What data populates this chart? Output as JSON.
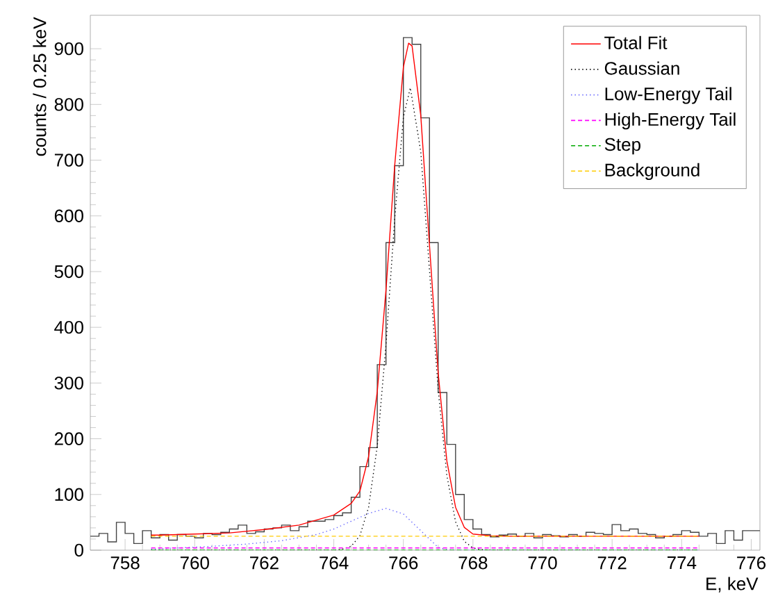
{
  "chart_data": {
    "type": "histogram",
    "xlabel": "E, keV",
    "ylabel": "counts / 0.25 keV",
    "color": "#444444",
    "bins": [
      757,
      757.25,
      757.5,
      757.75,
      758,
      758.25,
      758.5,
      758.75,
      759,
      759.25,
      759.5,
      759.75,
      760,
      760.25,
      760.5,
      760.75,
      761,
      761.25,
      761.5,
      761.75,
      762,
      762.25,
      762.5,
      762.75,
      763,
      763.25,
      763.5,
      763.75,
      764,
      764.25,
      764.5,
      764.75,
      765,
      765.25,
      765.5,
      765.75,
      766,
      766.25,
      766.5,
      766.75,
      767,
      767.25,
      767.5,
      767.75,
      768,
      768.25,
      768.5,
      768.75,
      769,
      769.25,
      769.5,
      769.75,
      770,
      770.25,
      770.5,
      770.75,
      771,
      771.25,
      771.5,
      771.75,
      772,
      772.25,
      772.5,
      772.75,
      773,
      773.25,
      773.5,
      773.75,
      774,
      774.25,
      774.5,
      774.75,
      775,
      775.25,
      775.5,
      775.75,
      776,
      776.25
    ],
    "values": [
      25,
      30,
      15,
      50,
      30,
      12,
      35,
      22,
      28,
      18,
      28,
      25,
      22,
      30,
      28,
      32,
      38,
      45,
      30,
      33,
      38,
      40,
      45,
      35,
      42,
      52,
      52,
      55,
      62,
      67,
      95,
      150,
      184,
      333,
      552,
      690,
      920,
      908,
      776,
      552,
      283,
      190,
      100,
      55,
      38,
      28,
      24,
      27,
      29,
      25,
      30,
      22,
      28,
      26,
      24,
      28,
      25,
      32,
      30,
      28,
      46,
      35,
      38,
      30,
      28,
      22,
      25,
      28,
      35,
      32,
      25,
      30,
      12,
      35,
      18,
      35,
      35
    ],
    "series": [
      {
        "name": "Total Fit",
        "type": "line",
        "color": "#ff0000",
        "line_style": "solid",
        "x": [
          758.75,
          759,
          760,
          761,
          762,
          763,
          764,
          764.5,
          764.75,
          765,
          765.25,
          765.5,
          765.75,
          766,
          766.15,
          766.25,
          766.5,
          766.75,
          767,
          767.25,
          767.5,
          767.75,
          768,
          768.5,
          769,
          770,
          771,
          772,
          773,
          774,
          774.5
        ],
        "values": [
          27,
          27,
          29,
          31,
          37,
          45,
          63,
          84,
          106,
          168,
          285,
          467,
          690,
          867,
          910,
          905,
          780,
          548,
          318,
          160,
          77,
          41,
          29,
          26,
          25,
          25,
          25,
          25,
          25,
          25,
          25
        ]
      },
      {
        "name": "Gaussian",
        "type": "line",
        "color": "#000000",
        "line_style": "dotted",
        "x": [
          758.75,
          764,
          764.25,
          764.5,
          764.75,
          765,
          765.25,
          765.5,
          765.75,
          766,
          766.2,
          766.5,
          766.75,
          767,
          767.25,
          767.5,
          767.75,
          768,
          768.25,
          768.5,
          774.5
        ],
        "values": [
          0,
          0,
          2,
          7,
          26,
          77,
          187,
          369,
          594,
          777,
          830,
          715,
          503,
          288,
          134,
          51,
          16,
          4,
          1,
          0,
          0
        ]
      },
      {
        "name": "Low-Energy Tail",
        "type": "line",
        "color": "#6666ff",
        "line_style": "dotted",
        "x": [
          758.75,
          759.5,
          760.5,
          761.5,
          762.5,
          763.5,
          764,
          764.5,
          765,
          765.5,
          766,
          766.5,
          767,
          767.25,
          767.5,
          768,
          774.5
        ],
        "values": [
          2,
          4,
          7,
          11,
          17,
          28,
          38,
          52,
          66,
          75,
          65,
          35,
          5,
          1,
          0,
          0,
          0
        ]
      },
      {
        "name": "High-Energy Tail",
        "type": "line",
        "color": "#ff00ff",
        "line_style": "dashed",
        "x": [
          758.75,
          774.5
        ],
        "values": [
          4,
          4
        ]
      },
      {
        "name": "Step",
        "type": "line",
        "color": "#00aa00",
        "line_style": "dashed",
        "x": [
          758.75,
          774.5
        ],
        "values": [
          0,
          0
        ]
      },
      {
        "name": "Background",
        "type": "line",
        "color": "#ffcc00",
        "line_style": "dashed",
        "x": [
          758.75,
          774.5
        ],
        "values": [
          25,
          25
        ]
      }
    ],
    "xlim": [
      757,
      776.25
    ],
    "ylim": [
      0,
      960
    ],
    "xticks": [
      758,
      760,
      762,
      764,
      766,
      768,
      770,
      772,
      774,
      776
    ],
    "yticks": [
      0,
      100,
      200,
      300,
      400,
      500,
      600,
      700,
      800,
      900
    ],
    "legend": "top right"
  }
}
